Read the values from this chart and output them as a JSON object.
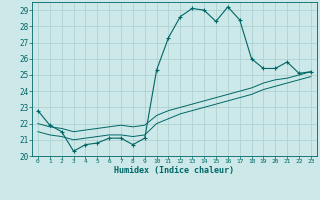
{
  "title": "",
  "xlabel": "Humidex (Indice chaleur)",
  "ylabel": "",
  "bg_color": "#cce8e8",
  "grid_color": "#aacece",
  "line_color": "#006666",
  "xlim": [
    -0.5,
    23.5
  ],
  "ylim": [
    20,
    29.5
  ],
  "xticks": [
    0,
    1,
    2,
    3,
    4,
    5,
    6,
    7,
    8,
    9,
    10,
    11,
    12,
    13,
    14,
    15,
    16,
    17,
    18,
    19,
    20,
    21,
    22,
    23
  ],
  "yticks": [
    20,
    21,
    22,
    23,
    24,
    25,
    26,
    27,
    28,
    29
  ],
  "series1_x": [
    0,
    1,
    2,
    3,
    4,
    5,
    6,
    7,
    8,
    9,
    10,
    11,
    12,
    13,
    14,
    15,
    16,
    17,
    18,
    19,
    20,
    21,
    22,
    23
  ],
  "series1_y": [
    22.8,
    21.9,
    21.5,
    20.3,
    20.7,
    20.8,
    21.1,
    21.1,
    20.7,
    21.1,
    25.3,
    27.3,
    28.6,
    29.1,
    29.0,
    28.3,
    29.2,
    28.4,
    26.0,
    25.4,
    25.4,
    25.8,
    25.1,
    25.2
  ],
  "series2_x": [
    0,
    1,
    2,
    3,
    4,
    5,
    6,
    7,
    8,
    9,
    10,
    11,
    12,
    13,
    14,
    15,
    16,
    17,
    18,
    19,
    20,
    21,
    22,
    23
  ],
  "series2_y": [
    22.0,
    21.8,
    21.7,
    21.5,
    21.6,
    21.7,
    21.8,
    21.9,
    21.8,
    21.9,
    22.5,
    22.8,
    23.0,
    23.2,
    23.4,
    23.6,
    23.8,
    24.0,
    24.2,
    24.5,
    24.7,
    24.8,
    25.0,
    25.2
  ],
  "series3_x": [
    0,
    1,
    2,
    3,
    4,
    5,
    6,
    7,
    8,
    9,
    10,
    11,
    12,
    13,
    14,
    15,
    16,
    17,
    18,
    19,
    20,
    21,
    22,
    23
  ],
  "series3_y": [
    21.5,
    21.3,
    21.2,
    21.0,
    21.1,
    21.2,
    21.3,
    21.3,
    21.2,
    21.3,
    22.0,
    22.3,
    22.6,
    22.8,
    23.0,
    23.2,
    23.4,
    23.6,
    23.8,
    24.1,
    24.3,
    24.5,
    24.7,
    24.9
  ]
}
